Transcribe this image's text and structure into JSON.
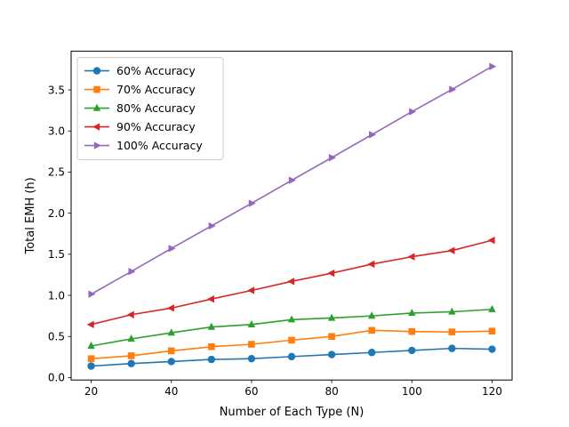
{
  "chart_data": {
    "type": "line",
    "title": "",
    "xlabel": "Number of Each Type (N)",
    "ylabel": "Total EMH (h)",
    "x": [
      20,
      30,
      40,
      50,
      60,
      70,
      80,
      90,
      100,
      110,
      120
    ],
    "xlim": [
      15,
      125
    ],
    "ylim": [
      -0.03,
      3.97
    ],
    "xticks": [
      20,
      40,
      60,
      80,
      100,
      120
    ],
    "xtick_labels": [
      "20",
      "40",
      "60",
      "80",
      "100",
      "120"
    ],
    "yticks": [
      0.0,
      0.5,
      1.0,
      1.5,
      2.0,
      2.5,
      3.0,
      3.5
    ],
    "ytick_labels": [
      "0.0",
      "0.5",
      "1.0",
      "1.5",
      "2.0",
      "2.5",
      "3.0",
      "3.5"
    ],
    "grid": false,
    "legend_position": "top-left",
    "series": [
      {
        "name": "60% Accuracy",
        "color": "#1f77b4",
        "marker": "circle",
        "values": [
          0.14,
          0.17,
          0.195,
          0.22,
          0.23,
          0.255,
          0.28,
          0.305,
          0.33,
          0.355,
          0.345
        ]
      },
      {
        "name": "70% Accuracy",
        "color": "#ff7f0e",
        "marker": "square",
        "values": [
          0.23,
          0.265,
          0.325,
          0.375,
          0.405,
          0.455,
          0.5,
          0.575,
          0.56,
          0.555,
          0.565
        ]
      },
      {
        "name": "80% Accuracy",
        "color": "#2ca02c",
        "marker": "triangle-up",
        "values": [
          0.385,
          0.47,
          0.545,
          0.615,
          0.645,
          0.705,
          0.725,
          0.75,
          0.785,
          0.8,
          0.83
        ]
      },
      {
        "name": "90% Accuracy",
        "color": "#d62728",
        "marker": "triangle-left",
        "values": [
          0.645,
          0.765,
          0.845,
          0.955,
          1.06,
          1.17,
          1.27,
          1.38,
          1.47,
          1.545,
          1.67
        ]
      },
      {
        "name": "100% Accuracy",
        "color": "#9467bd",
        "marker": "triangle-right",
        "values": [
          1.015,
          1.29,
          1.57,
          1.845,
          2.12,
          2.4,
          2.675,
          2.955,
          3.235,
          3.505,
          3.785
        ]
      }
    ]
  }
}
